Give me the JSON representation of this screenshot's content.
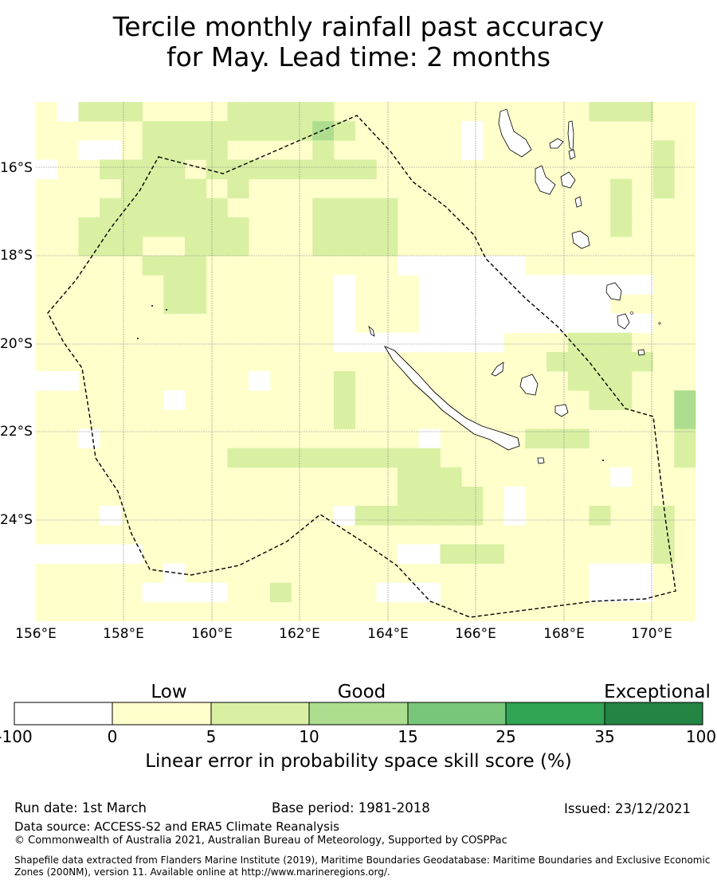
{
  "title": {
    "line1": "Tercile monthly rainfall past accuracy",
    "line2": "for May. Lead time: 2 months"
  },
  "map": {
    "lat_labels": [
      "16°S",
      "18°S",
      "20°S",
      "22°S",
      "24°S"
    ],
    "lon_labels": [
      "156°E",
      "158°E",
      "160°E",
      "162°E",
      "164°E",
      "166°E",
      "168°E",
      "170°E"
    ],
    "boundary": "dashed EEZ outline",
    "land": "New Caledonia, Loyalty Islands, Vanuatu",
    "colors": {
      "skill_below_0": "#ffffff",
      "skill_0_5": "#ffffcc",
      "skill_5_10": "#d9f0a3",
      "skill_10_15": "#addd8e",
      "skill_15_25": "#78c679",
      "skill_25_35": "#31a354",
      "skill_35_100": "#238443"
    }
  },
  "colorbar": {
    "category_labels": [
      "Low",
      "Good",
      "Exceptional"
    ],
    "ticks": [
      "-100",
      "0",
      "5",
      "10",
      "15",
      "25",
      "35",
      "100"
    ],
    "colors": [
      "#ffffff",
      "#ffffcc",
      "#d9f0a3",
      "#addd8e",
      "#78c679",
      "#31a354",
      "#238443"
    ],
    "title": "Linear error in probability space skill score (%)"
  },
  "footer": {
    "run_date": "Run date: 1st March",
    "base_period": "Base period: 1981-2018",
    "issued": "Issued: 23/12/2021",
    "data_source": "Data source: ACCESS-S2 and ERA5 Climate Reanalysis",
    "copyright": "© Commonwealth of Australia 2021, Australian Bureau of Meteorology, Supported by COSPPac",
    "shapefile": "Shapefile data extracted from Flanders Marine Institute (2019), Maritime Boundaries Geodatabase: Maritime Boundaries and Exclusive Economic Zones (200NM), version 11. Available online at http://www.marineregions.org/."
  }
}
